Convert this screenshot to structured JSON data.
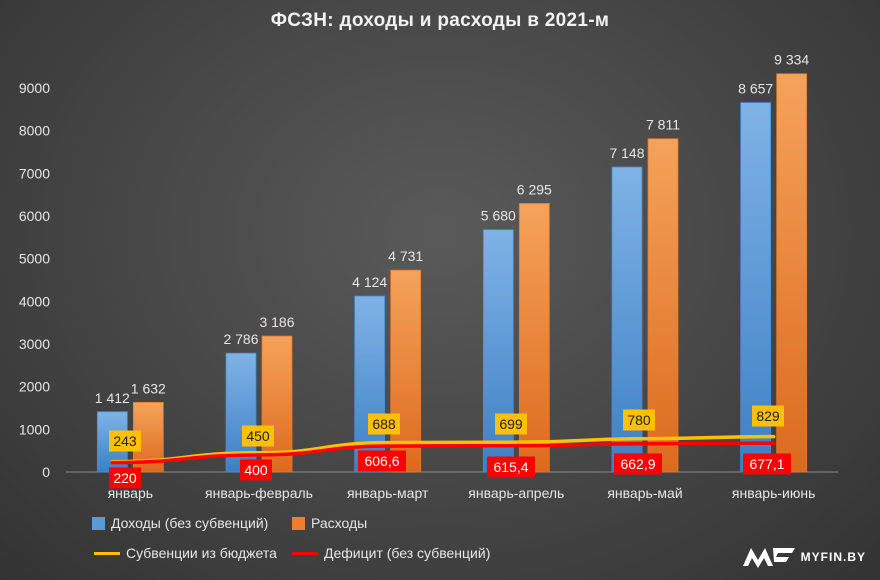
{
  "chart_data": {
    "type": "bar",
    "title": "ФСЗН:  доходы  и расходы  в 2021-м",
    "categories": [
      "январь",
      "январь-февраль",
      "январь-март",
      "январь-апрель",
      "январь-май",
      "январь-июнь"
    ],
    "ylim": [
      0,
      9000
    ],
    "yticks": [
      0,
      1000,
      2000,
      3000,
      4000,
      5000,
      6000,
      7000,
      8000,
      9000
    ],
    "grid": false,
    "legend_position": "bottom-left",
    "series": [
      {
        "name": "Доходы (без субвенций)",
        "type": "bar",
        "color": "#5b9bd5",
        "values": [
          1412,
          2786,
          4124,
          5680,
          7148,
          8657
        ],
        "labels": [
          "1 412",
          "2 786",
          "4 124",
          "5 680",
          "7 148",
          "8 657"
        ]
      },
      {
        "name": "Расходы",
        "type": "bar",
        "color": "#ed7d31",
        "values": [
          1632,
          3186,
          4731,
          6295,
          7811,
          9334
        ],
        "labels": [
          "1 632",
          "3 186",
          "4 731",
          "6 295",
          "7 811",
          "9 334"
        ]
      },
      {
        "name": "Субвенции из бюджета",
        "type": "line",
        "color": "#ffc000",
        "values": [
          243,
          450,
          688,
          699,
          780,
          829
        ],
        "labels": [
          "243",
          "450",
          "688",
          "699",
          "780",
          "829"
        ]
      },
      {
        "name": "Дефицит (без субвенций)",
        "type": "line",
        "color": "#ff0000",
        "values": [
          220,
          400,
          606.6,
          615.4,
          662.9,
          677.1
        ],
        "labels": [
          "220",
          "400",
          "606,6",
          "615,4",
          "662,9",
          "677,1"
        ]
      }
    ]
  },
  "logo": {
    "text": "MYFIN.BY",
    "icon": "myfin-logo-icon"
  }
}
